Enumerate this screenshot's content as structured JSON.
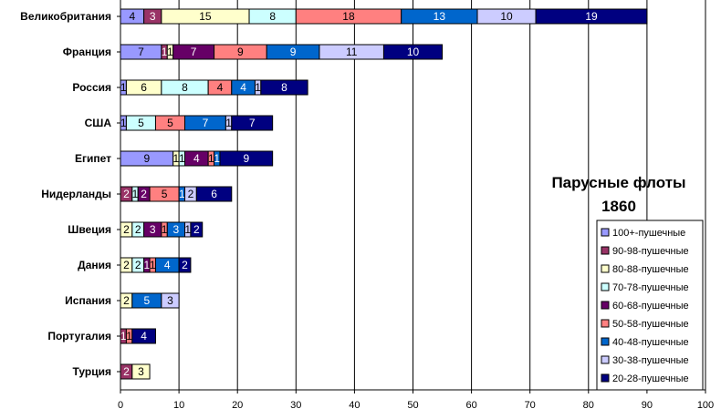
{
  "chart_data": {
    "type": "bar",
    "orientation": "horizontal",
    "stacked": true,
    "title": "Парусные флоты 1860",
    "title_lines": [
      "Парусные флоты",
      "1860"
    ],
    "categories": [
      "Великобритания",
      "Франция",
      "Россия",
      "США",
      "Египет",
      "Нидерланды",
      "Швеция",
      "Дания",
      "Испания",
      "Португалия",
      "Турция"
    ],
    "xlim": [
      0,
      100
    ],
    "xticks": [
      0,
      10,
      20,
      30,
      40,
      50,
      60,
      70,
      80,
      90,
      100
    ],
    "grid": "vertical",
    "legend_position": "right",
    "series": [
      {
        "name": "100+-пушечные",
        "color": "#9999FF",
        "text_color": "#000000",
        "values": [
          4,
          7,
          1,
          1,
          9,
          0,
          0,
          0,
          0,
          0,
          0
        ]
      },
      {
        "name": "90-98-пушечные",
        "color": "#993366",
        "text_color": "#FFFFFF",
        "values": [
          3,
          1,
          0,
          0,
          0,
          2,
          0,
          0,
          0,
          1,
          2
        ]
      },
      {
        "name": "80-88-пушечные",
        "color": "#FFFFCC",
        "text_color": "#000000",
        "values": [
          15,
          1,
          6,
          0,
          1,
          0,
          2,
          2,
          2,
          0,
          3
        ]
      },
      {
        "name": "70-78-пушечные",
        "color": "#CCFFFF",
        "text_color": "#000000",
        "values": [
          8,
          0,
          8,
          5,
          1,
          1,
          2,
          2,
          0,
          0,
          0
        ]
      },
      {
        "name": "60-68-пушечные",
        "color": "#660066",
        "text_color": "#FFFFFF",
        "values": [
          0,
          7,
          0,
          0,
          4,
          2,
          3,
          1,
          0,
          0,
          0
        ]
      },
      {
        "name": "50-58-пушечные",
        "color": "#FF8080",
        "text_color": "#000000",
        "values": [
          18,
          9,
          4,
          5,
          1,
          5,
          1,
          1,
          0,
          1,
          0
        ]
      },
      {
        "name": "40-48-пушечные",
        "color": "#0066CC",
        "text_color": "#FFFFFF",
        "values": [
          13,
          9,
          4,
          7,
          1,
          1,
          3,
          4,
          5,
          0,
          0
        ]
      },
      {
        "name": "30-38-пушечные",
        "color": "#CCCCFF",
        "text_color": "#000000",
        "values": [
          10,
          11,
          1,
          1,
          0,
          2,
          1,
          0,
          3,
          0,
          0
        ]
      },
      {
        "name": "20-28-пушечные",
        "color": "#000080",
        "text_color": "#FFFFFF",
        "values": [
          19,
          10,
          8,
          7,
          9,
          6,
          2,
          2,
          0,
          4,
          0
        ]
      }
    ]
  }
}
